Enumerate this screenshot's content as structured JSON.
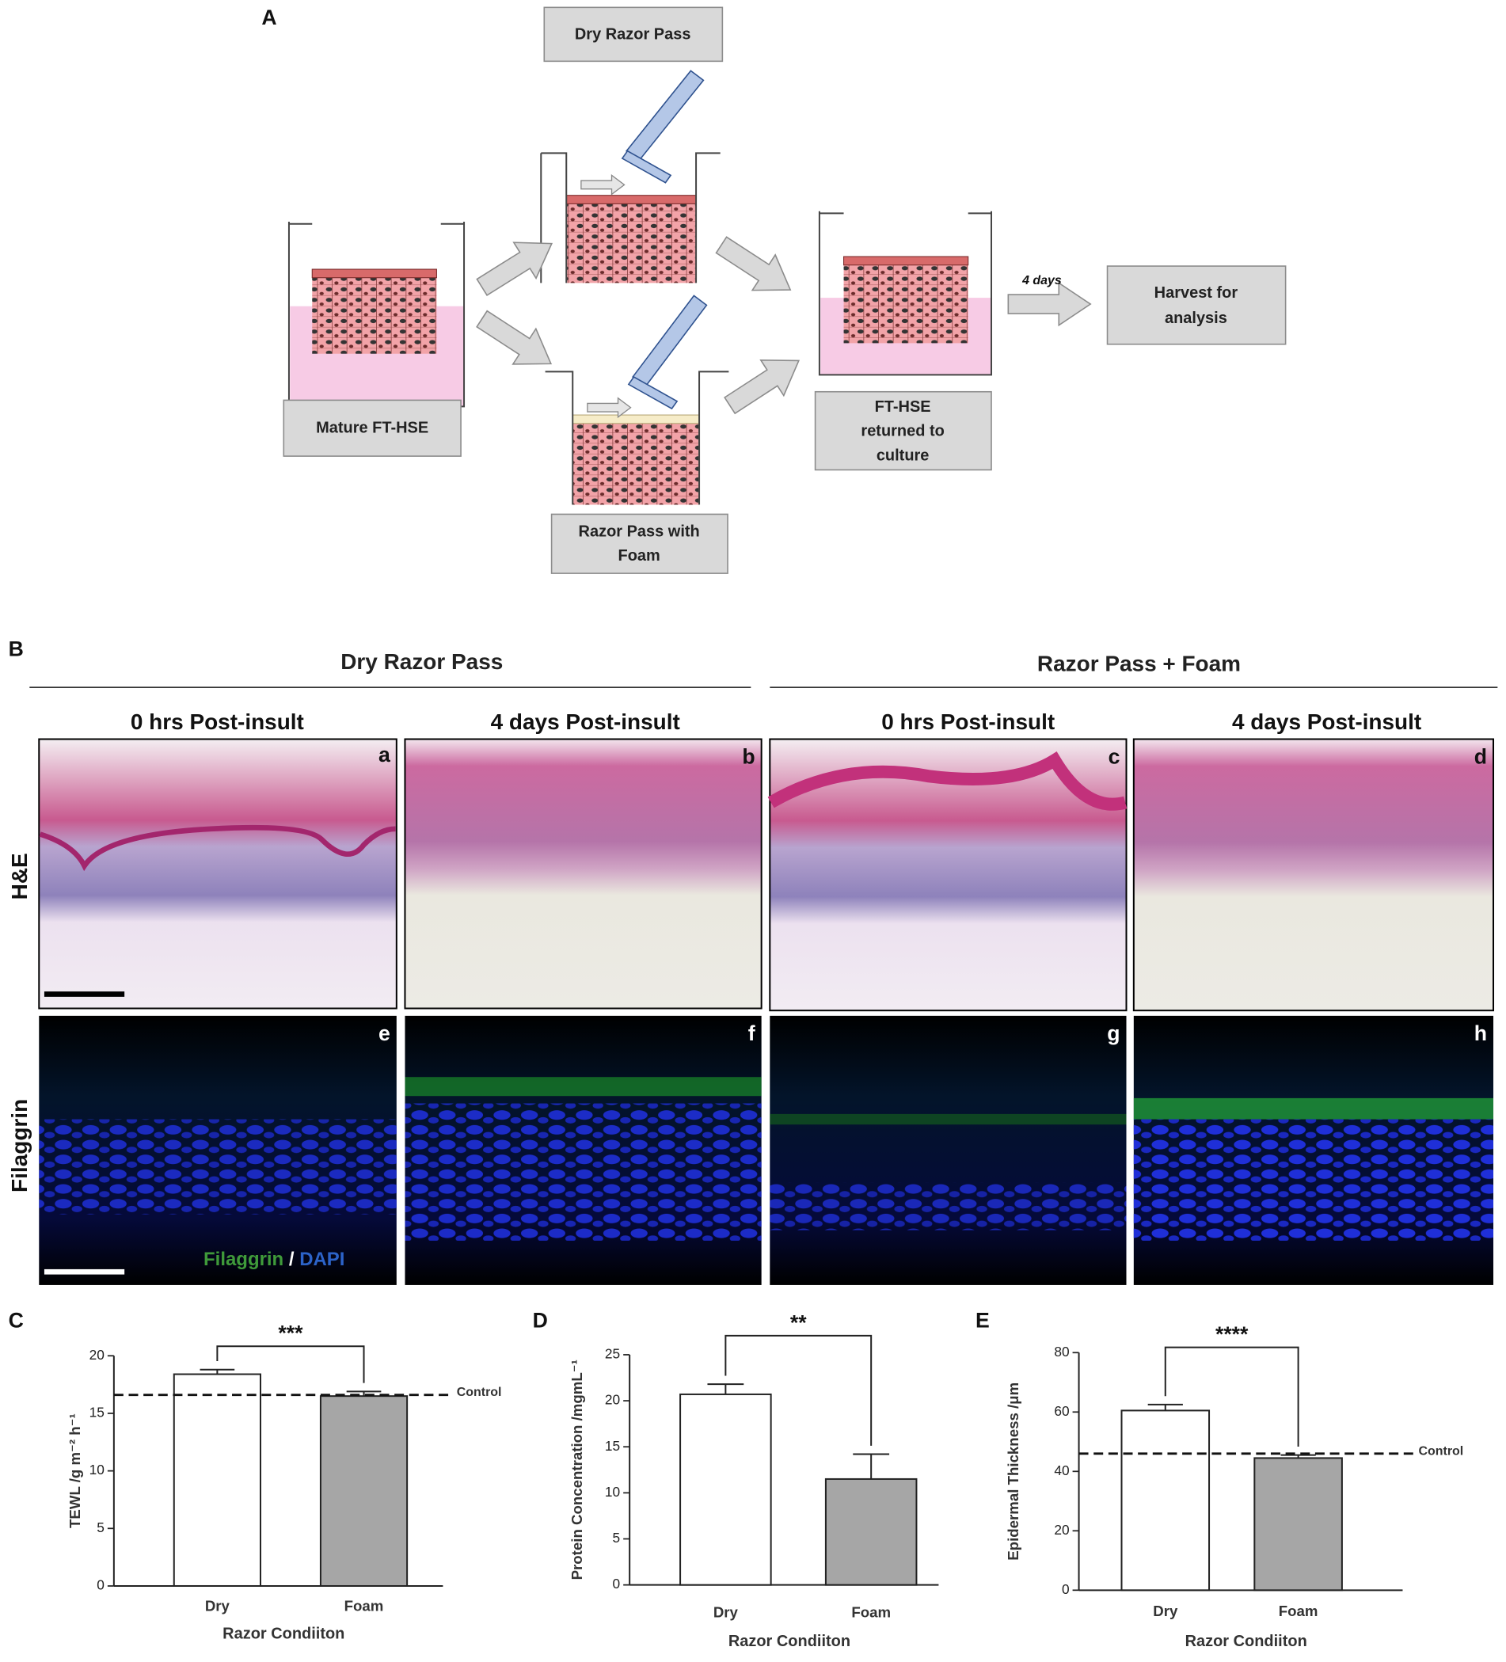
{
  "panel_a": {
    "label": "A",
    "dry_razor_box": "Dry Razor Pass",
    "mature_box": "Mature FT-HSE",
    "foam_box": [
      "Razor Pass with",
      "Foam"
    ],
    "returned_box": [
      "FT-HSE",
      "returned to",
      "culture"
    ],
    "arrow_label": "4 days",
    "harvest_box": [
      "Harvest for",
      "analysis"
    ]
  },
  "panel_b": {
    "label": "B",
    "groups": [
      "Dry Razor Pass",
      "Razor Pass + Foam"
    ],
    "columns": [
      "0 hrs Post-insult",
      "4 days Post-insult",
      "0 hrs Post-insult",
      "4 days Post-insult"
    ],
    "rows": [
      "H&E",
      "Filaggrin"
    ],
    "image_letters": [
      "a",
      "b",
      "c",
      "d",
      "e",
      "f",
      "g",
      "h"
    ],
    "stain_legend": [
      "Filaggrin",
      "/",
      "DAPI"
    ]
  },
  "chart_data": [
    {
      "type": "bar",
      "label": "C",
      "ylabel": "TEWL /g m⁻² h⁻¹",
      "xlabel": "Razor Condiiton",
      "categories": [
        "Dry",
        "Foam"
      ],
      "values": [
        18.4,
        16.5
      ],
      "errors": [
        0.4,
        0.4
      ],
      "colors": [
        "#ffffff",
        "#a6a6a6"
      ],
      "ylim": [
        0,
        20
      ],
      "yticks": [
        0,
        5,
        10,
        15,
        20
      ],
      "control": {
        "value": 16.6,
        "label": "Control"
      },
      "significance": "***"
    },
    {
      "type": "bar",
      "label": "D",
      "ylabel": "Protein Concentration /mgmL⁻¹",
      "xlabel": "Razor Condiiton",
      "categories": [
        "Dry",
        "Foam"
      ],
      "values": [
        20.7,
        11.5
      ],
      "errors": [
        1.1,
        2.7
      ],
      "colors": [
        "#ffffff",
        "#a6a6a6"
      ],
      "ylim": [
        0,
        25
      ],
      "yticks": [
        0,
        5,
        10,
        15,
        20,
        25
      ],
      "significance": "**"
    },
    {
      "type": "bar",
      "label": "E",
      "ylabel": "Epidermal Thickness /μm",
      "xlabel": "Razor Condiiton",
      "categories": [
        "Dry",
        "Foam"
      ],
      "values": [
        60.5,
        44.5
      ],
      "errors": [
        2,
        1
      ],
      "colors": [
        "#ffffff",
        "#a6a6a6"
      ],
      "ylim": [
        0,
        80
      ],
      "yticks": [
        0,
        20,
        40,
        60,
        80
      ],
      "control": {
        "value": 46,
        "label": "Control"
      },
      "significance": "****"
    }
  ]
}
